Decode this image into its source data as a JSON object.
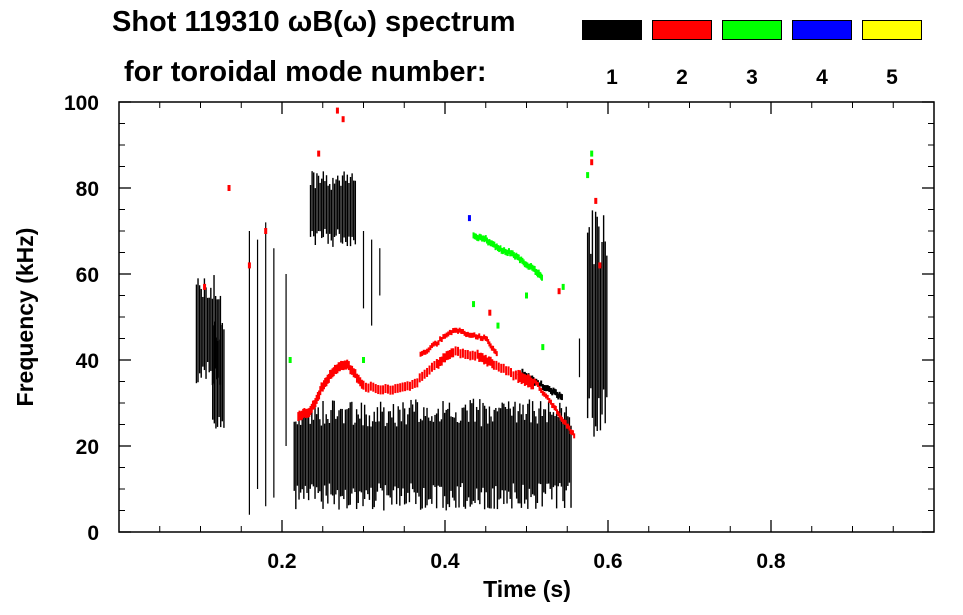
{
  "header": {
    "title": "Shot 119310 ωB(ω) spectrum",
    "subtitle": "for toroidal mode number:"
  },
  "legend": [
    {
      "label": "1",
      "color": "#000000"
    },
    {
      "label": "2",
      "color": "#ff0000"
    },
    {
      "label": "3",
      "color": "#00ff00"
    },
    {
      "label": "4",
      "color": "#0000ff"
    },
    {
      "label": "5",
      "color": "#ffff00"
    }
  ],
  "chart_data": {
    "type": "spectrogram",
    "title": "Shot 119310 ωB(ω) spectrum",
    "xlabel": "Time (s)",
    "ylabel": "Frequency (kHz)",
    "xlim": [
      0.0,
      1.0
    ],
    "ylim": [
      0,
      100
    ],
    "xticks": [
      0.2,
      0.4,
      0.6,
      0.8
    ],
    "xtick_labels": [
      "0.2",
      "0.4",
      "0.6",
      "0.8"
    ],
    "yticks": [
      0,
      20,
      40,
      60,
      80,
      100
    ],
    "ytick_labels": [
      "0",
      "20",
      "40",
      "60",
      "80",
      "100"
    ],
    "series": [
      {
        "name": "1",
        "color": "#000000",
        "bands": [
          {
            "t": [
              0.095,
              0.125
            ],
            "f": [
              34,
              60
            ]
          },
          {
            "t": [
              0.115,
              0.13
            ],
            "f": [
              24,
              50
            ]
          },
          {
            "t": [
              0.215,
              0.555
            ],
            "f": [
              5,
              31
            ]
          },
          {
            "t": [
              0.235,
              0.29
            ],
            "f": [
              66,
              84
            ]
          },
          {
            "t": [
              0.575,
              0.6
            ],
            "f": [
              20,
              75
            ]
          }
        ],
        "streaks": [
          {
            "t": 0.16,
            "f": [
              4,
              70
            ]
          },
          {
            "t": 0.17,
            "f": [
              10,
              68
            ]
          },
          {
            "t": 0.18,
            "f": [
              6,
              72
            ]
          },
          {
            "t": 0.19,
            "f": [
              8,
              66
            ]
          },
          {
            "t": 0.205,
            "f": [
              20,
              60
            ]
          },
          {
            "t": 0.3,
            "f": [
              52,
              70
            ]
          },
          {
            "t": 0.31,
            "f": [
              48,
              68
            ]
          },
          {
            "t": 0.32,
            "f": [
              55,
              66
            ]
          },
          {
            "t": 0.565,
            "f": [
              36,
              45
            ]
          }
        ],
        "line": {
          "t": [
            0.495,
            0.51,
            0.53,
            0.545
          ],
          "f": [
            37,
            35,
            33,
            31
          ]
        }
      },
      {
        "name": "2",
        "color": "#ff0000",
        "line": {
          "t": [
            0.22,
            0.235,
            0.25,
            0.265,
            0.28,
            0.3,
            0.33,
            0.36,
            0.39,
            0.41,
            0.44,
            0.46,
            0.49,
            0.51
          ],
          "f": [
            27,
            28,
            34,
            38,
            39,
            34,
            33,
            34,
            39,
            42,
            41,
            39,
            36,
            34
          ]
        },
        "line2": {
          "t": [
            0.49,
            0.51,
            0.53,
            0.545,
            0.56
          ],
          "f": [
            37,
            35,
            30,
            26,
            22
          ]
        },
        "upper": {
          "t": [
            0.37,
            0.39,
            0.41,
            0.43,
            0.45,
            0.465
          ],
          "f": [
            41,
            44,
            47,
            46,
            45,
            41
          ]
        },
        "points": [
          {
            "t": 0.105,
            "f": 57
          },
          {
            "t": 0.135,
            "f": 80
          },
          {
            "t": 0.16,
            "f": 62
          },
          {
            "t": 0.18,
            "f": 70
          },
          {
            "t": 0.245,
            "f": 88
          },
          {
            "t": 0.268,
            "f": 98
          },
          {
            "t": 0.275,
            "f": 96
          },
          {
            "t": 0.54,
            "f": 56
          },
          {
            "t": 0.58,
            "f": 86
          },
          {
            "t": 0.585,
            "f": 77
          },
          {
            "t": 0.59,
            "f": 62
          },
          {
            "t": 0.455,
            "f": 51
          }
        ]
      },
      {
        "name": "3",
        "color": "#00ff00",
        "line": {
          "t": [
            0.435,
            0.45,
            0.465,
            0.48,
            0.495,
            0.51,
            0.52
          ],
          "f": [
            69,
            68,
            66,
            65,
            63,
            61,
            59
          ]
        },
        "points": [
          {
            "t": 0.21,
            "f": 40
          },
          {
            "t": 0.3,
            "f": 40
          },
          {
            "t": 0.435,
            "f": 53
          },
          {
            "t": 0.465,
            "f": 48
          },
          {
            "t": 0.52,
            "f": 43
          },
          {
            "t": 0.545,
            "f": 57
          },
          {
            "t": 0.575,
            "f": 83
          },
          {
            "t": 0.58,
            "f": 88
          },
          {
            "t": 0.5,
            "f": 55
          }
        ]
      },
      {
        "name": "4",
        "color": "#0000ff",
        "points": [
          {
            "t": 0.43,
            "f": 73
          }
        ]
      },
      {
        "name": "5",
        "color": "#ffff00",
        "points": []
      }
    ]
  }
}
